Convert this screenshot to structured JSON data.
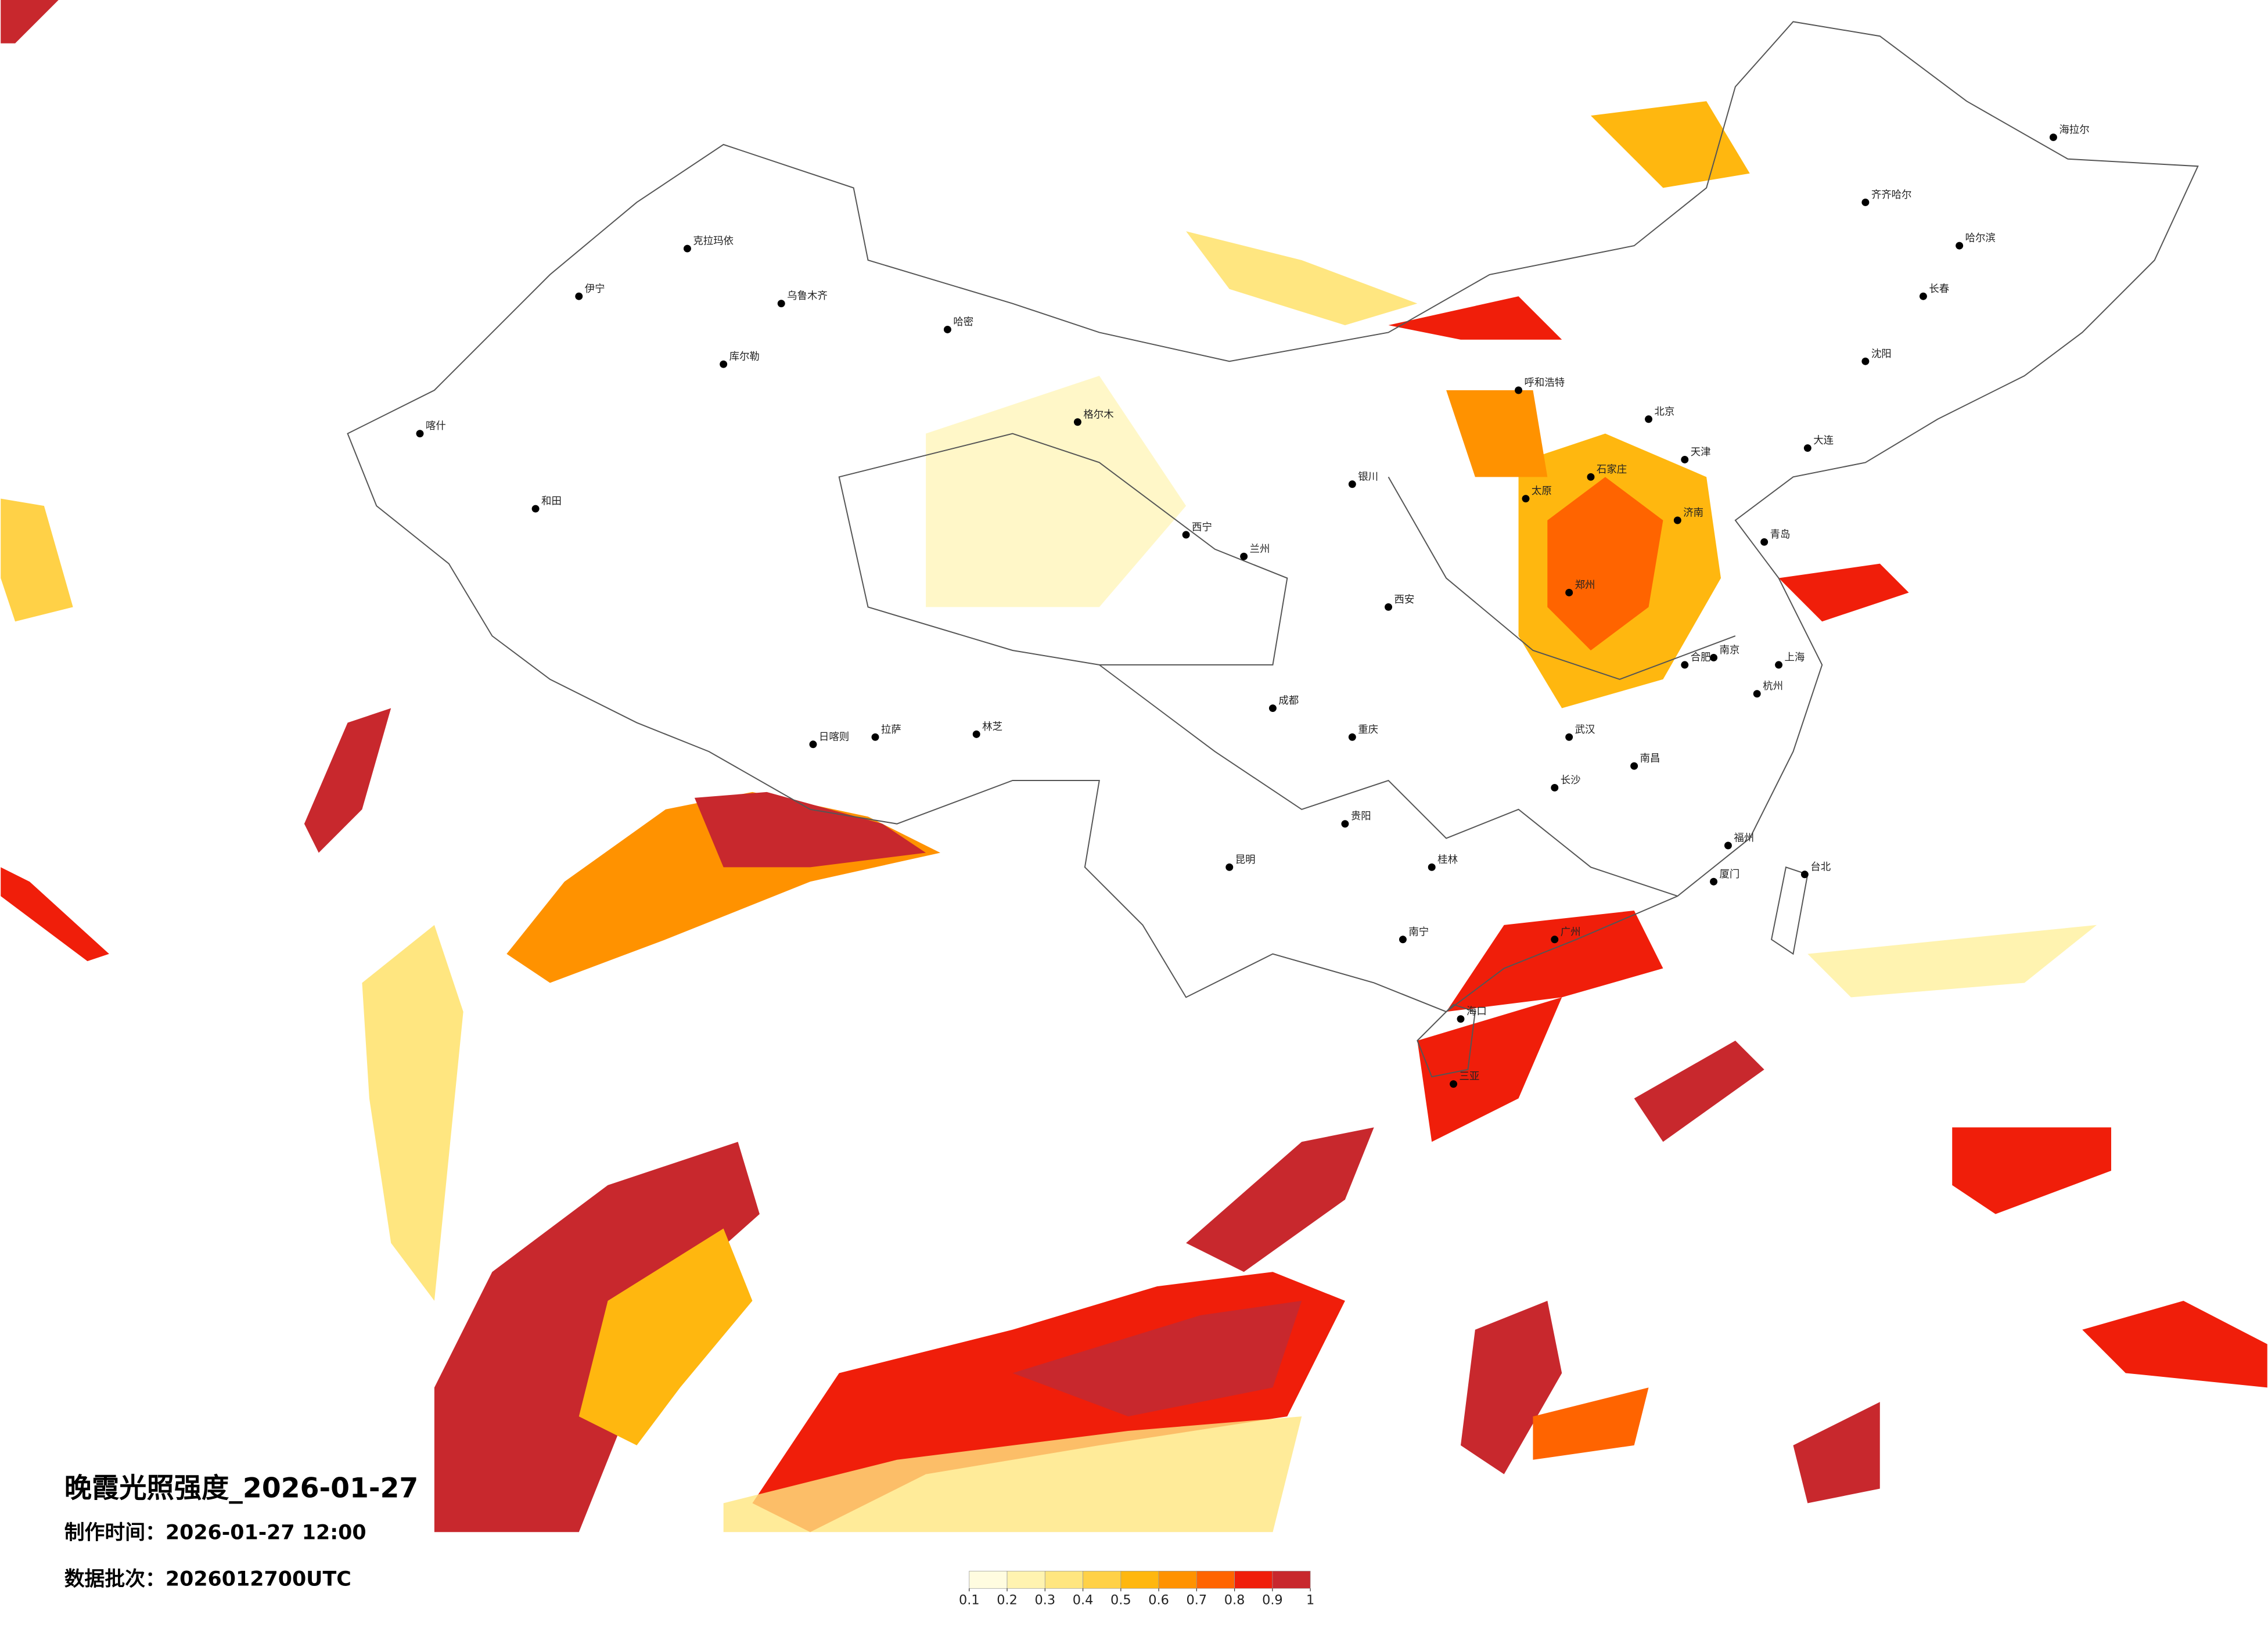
{
  "title": "晚霞光照强度_2026-01-27",
  "made_time": "制作时间：2026-01-27 12:00",
  "batch": "数据批次：2026012700UTC",
  "legend": {
    "ticks": [
      0.1,
      0.2,
      0.3,
      0.4,
      0.5,
      0.6,
      0.7,
      0.8,
      0.9,
      1
    ],
    "colors": [
      "#fffce0",
      "#fff3b0",
      "#ffe680",
      "#ffd147",
      "#ffb70f",
      "#ff9200",
      "#ff6400",
      "#f01e0a",
      "#c8282d"
    ]
  },
  "cities": [
    "北京",
    "天津",
    "上海",
    "广州",
    "重庆",
    "成都",
    "西安",
    "武汉",
    "乌鲁木齐",
    "拉萨",
    "哈尔滨",
    "长春",
    "沈阳",
    "呼和浩特",
    "兰州",
    "西宁",
    "昆明",
    "贵阳",
    "南宁",
    "海口",
    "台北",
    "福州",
    "杭州",
    "南京",
    "济南",
    "郑州",
    "长沙",
    "南昌",
    "合肥",
    "太原",
    "石家庄",
    "银川",
    "喀什",
    "和田",
    "克拉玛依",
    "伊宁",
    "库尔勒",
    "哈密",
    "格尔木",
    "日喀则",
    "林芝",
    "海拉尔",
    "齐齐哈尔",
    "大连",
    "青岛",
    "厦门",
    "桂林",
    "三亚"
  ]
}
